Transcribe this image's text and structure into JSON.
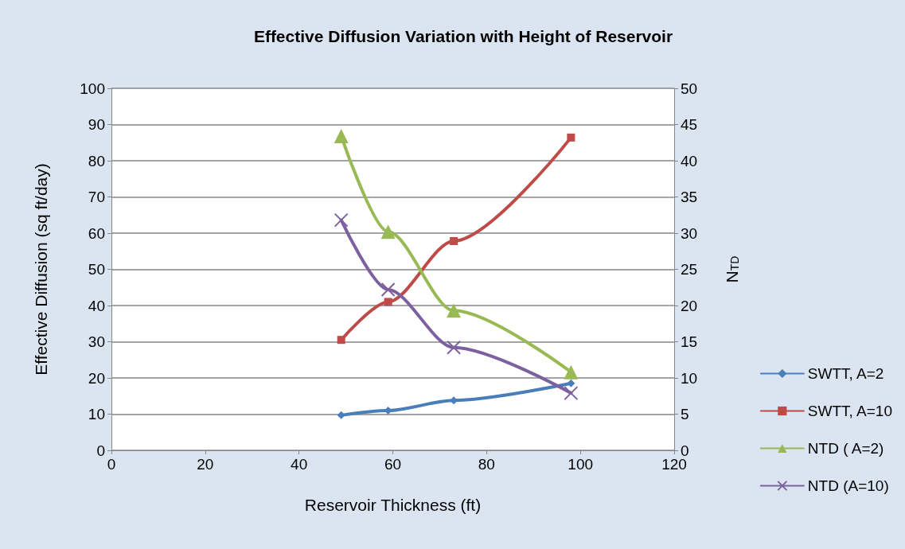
{
  "chart_data": {
    "type": "line",
    "title": "Effective Diffusion Variation with Height of Reservoir",
    "xlabel": "Reservoir Thickness (ft)",
    "ylabel": "Effective Diffusion (sq ft/day)",
    "y2label": "N$_{TD}$",
    "x": [
      49,
      59,
      73,
      98
    ],
    "series": [
      {
        "name": "SWTT, A=2",
        "color": "#4a7ebb",
        "marker": "diamond",
        "values": [
          9.7,
          11,
          13.8,
          18.5
        ]
      },
      {
        "name": "SWTT, A=10",
        "color": "#be4b48",
        "marker": "square",
        "values": [
          30.5,
          41,
          57.8,
          86.4
        ]
      },
      {
        "name": "NTD ( A=2)",
        "color": "#98b954",
        "marker": "triangle",
        "axis": "y2",
        "values": [
          43.4,
          30.2,
          19.3,
          10.8
        ]
      },
      {
        "name": "NTD (A=10)",
        "color": "#7d60a0",
        "marker": "cross",
        "axis": "y2",
        "values": [
          31.8,
          22.2,
          14.2,
          7.9
        ]
      }
    ],
    "xlim": [
      0,
      120
    ],
    "xticks": [
      0,
      20,
      40,
      60,
      80,
      100,
      120
    ],
    "ylim": [
      0,
      100
    ],
    "yticks": [
      0,
      10,
      20,
      30,
      40,
      50,
      60,
      70,
      80,
      90,
      100
    ],
    "y2lim": [
      0,
      50
    ],
    "y2ticks": [
      0,
      5,
      10,
      15,
      20,
      25,
      30,
      35,
      40,
      45,
      50
    ],
    "grid": "y",
    "legend": "right",
    "line_style": "solid"
  }
}
